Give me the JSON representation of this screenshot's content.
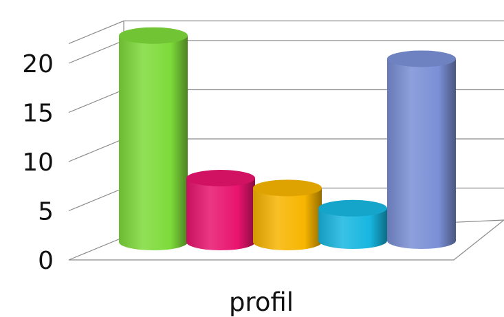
{
  "chart_data": {
    "type": "bar",
    "style": "3d-cylinder",
    "categories": [
      "",
      "",
      "",
      "",
      ""
    ],
    "values": [
      21,
      6.5,
      5.5,
      3.3,
      18.5
    ],
    "colors": [
      "#7edb3a",
      "#e8146e",
      "#f7b500",
      "#17b6e0",
      "#7a8fd6"
    ],
    "title": "",
    "xlabel": "profil",
    "ylabel": "",
    "ylim": [
      0,
      20
    ],
    "yticks": [
      "0",
      "5",
      "10",
      "15",
      "20"
    ],
    "grid": true,
    "legend": "none"
  }
}
